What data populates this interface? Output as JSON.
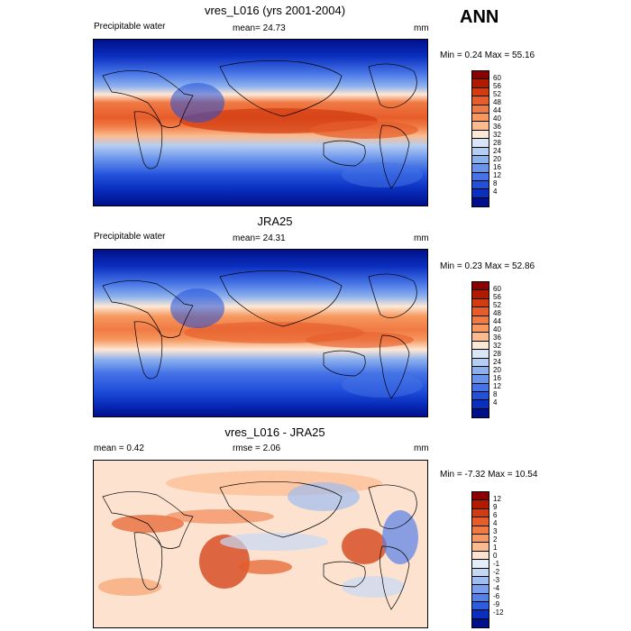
{
  "season": "ANN",
  "panels": [
    {
      "title": "vres_L016 (yrs 2001-2004)",
      "left": "Precipitable water",
      "center": "mean=  24.73",
      "units": "mm",
      "minmax": "Min =   0.24 Max =  55.16",
      "colorbar": {
        "labels": [
          "60",
          "56",
          "52",
          "48",
          "44",
          "40",
          "36",
          "32",
          "28",
          "24",
          "20",
          "16",
          "12",
          "8",
          "4"
        ],
        "colors": [
          "#8b0000",
          "#b21a00",
          "#d23c11",
          "#e65c2a",
          "#f07a44",
          "#f6985f",
          "#fbbb8e",
          "#fde8d5",
          "#d8e6f8",
          "#b3cdf3",
          "#8bb0ee",
          "#6a93eb",
          "#4673e6",
          "#2150db",
          "#0a2fbf",
          "#00108a"
        ]
      }
    },
    {
      "title": "JRA25",
      "left": "Precipitable water",
      "center": "mean=  24.31",
      "units": "mm",
      "minmax": "Min =   0.23 Max =  52.86",
      "colorbar": {
        "labels": [
          "60",
          "56",
          "52",
          "48",
          "44",
          "40",
          "36",
          "32",
          "28",
          "24",
          "20",
          "16",
          "12",
          "8",
          "4"
        ],
        "colors": [
          "#8b0000",
          "#b21a00",
          "#d23c11",
          "#e65c2a",
          "#f07a44",
          "#f6985f",
          "#fbbb8e",
          "#fde8d5",
          "#d8e6f8",
          "#b3cdf3",
          "#8bb0ee",
          "#6a93eb",
          "#4673e6",
          "#2150db",
          "#0a2fbf",
          "#00108a"
        ]
      }
    },
    {
      "title": "vres_L016 - JRA25",
      "left": "mean =   0.42",
      "center": "rmse =   2.06",
      "units": "mm",
      "minmax": "Min =  -7.32 Max =  10.54",
      "colorbar": {
        "labels": [
          "12",
          "9",
          "6",
          "4",
          "3",
          "2",
          "1",
          "0",
          "-1",
          "-2",
          "-3",
          "-4",
          "-6",
          "-9",
          "-12"
        ],
        "colors": [
          "#8b0000",
          "#b21a00",
          "#d23c11",
          "#e65c2a",
          "#f07a44",
          "#f6985f",
          "#fbbb8e",
          "#fde3cf",
          "#e4eefb",
          "#c4d8f5",
          "#9fbdf0",
          "#7a9fec",
          "#5580e8",
          "#2d5cdc",
          "#0a2fbf",
          "#00108a"
        ]
      }
    }
  ]
}
